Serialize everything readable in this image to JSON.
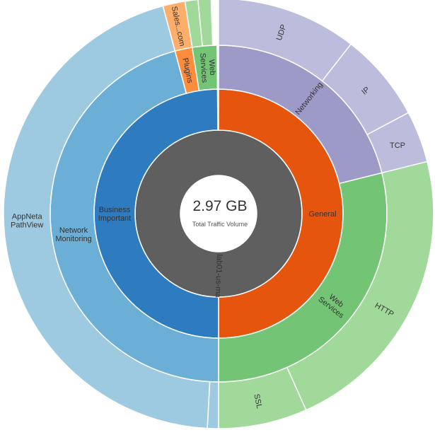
{
  "chart_data": {
    "type": "sunburst",
    "center": {
      "value": "2.97 GB",
      "caption": "Total Traffic Volume"
    },
    "colors": {
      "root": "#5f5f5f",
      "business_important": "#2e7bbf",
      "network_monitoring": "#6baed6",
      "appneta_pathview": "#9ecae1",
      "general": "#e6550d",
      "networking": "#9e9ac8",
      "networking_children": "#bcbddc",
      "web_services": "#74c476",
      "web_services_children": "#a1d99b",
      "plugins": "#fd8d3c",
      "sales_com": "#fdae6b",
      "web_small": "#a1d99b"
    },
    "ring1": {
      "name": "lab01-us-ma",
      "start": 0,
      "end": 360
    },
    "ring2": [
      {
        "name": "General",
        "start": 0,
        "end": 180,
        "color_key": "general",
        "label_angle": 90,
        "label_rot": 0
      },
      {
        "name": "Business\nImportant",
        "start": 180,
        "end": 359.5,
        "color_key": "business_important",
        "label_angle": 270,
        "label_rot": 0
      }
    ],
    "ring3": [
      {
        "name": "Networking",
        "start": 0,
        "end": 76,
        "color_key": "networking",
        "label_angle": 38,
        "label_rot": -52
      },
      {
        "name": "Web\nServices",
        "start": 76,
        "end": 180,
        "color_key": "web_services",
        "label_angle": 128,
        "label_rot": 38
      },
      {
        "name": "Network\nMonitoring",
        "start": 180,
        "end": 345,
        "color_key": "network_monitoring",
        "label_angle": 262,
        "label_rot": 0
      },
      {
        "name": "Plugins",
        "start": 345,
        "end": 351,
        "color_key": "plugins",
        "label_angle": 348,
        "label_rot": 78
      },
      {
        "name": "Web\nServices",
        "start": 351,
        "end": 359.5,
        "color_key": "web_services",
        "label_angle": 356,
        "label_rot": 86
      }
    ],
    "ring4": [
      {
        "name": "UDP",
        "start": 0,
        "end": 38,
        "color_key": "networking_children",
        "label_angle": 19,
        "label_rot": -71
      },
      {
        "name": "IP",
        "start": 38,
        "end": 62,
        "color_key": "networking_children",
        "label_angle": 50,
        "label_rot": -40
      },
      {
        "name": "TCP",
        "start": 62,
        "end": 76,
        "color_key": "networking_children",
        "label_angle": 69,
        "label_rot": 0
      },
      {
        "name": "HTTP",
        "start": 76,
        "end": 156,
        "color_key": "web_services_children",
        "label_angle": 120,
        "label_rot": 30
      },
      {
        "name": "SSL",
        "start": 156,
        "end": 180,
        "color_key": "web_services_children",
        "label_angle": 168,
        "label_rot": 78
      },
      {
        "name": "",
        "start": 180,
        "end": 183,
        "color_key": "appneta_pathview",
        "label_angle": 181,
        "label_rot": 0
      },
      {
        "name": "AppNeta\nPathView",
        "start": 183,
        "end": 345,
        "color_key": "appneta_pathview",
        "label_angle": 268,
        "label_rot": 0
      },
      {
        "name": "Sales...com",
        "start": 345,
        "end": 351,
        "color_key": "sales_com",
        "label_angle": 348,
        "label_rot": 78
      },
      {
        "name": "",
        "start": 351,
        "end": 354.5,
        "color_key": "web_small",
        "label_angle": 352,
        "label_rot": 0
      },
      {
        "name": "",
        "start": 354.5,
        "end": 358,
        "color_key": "web_small",
        "label_angle": 356,
        "label_rot": 0
      }
    ]
  }
}
